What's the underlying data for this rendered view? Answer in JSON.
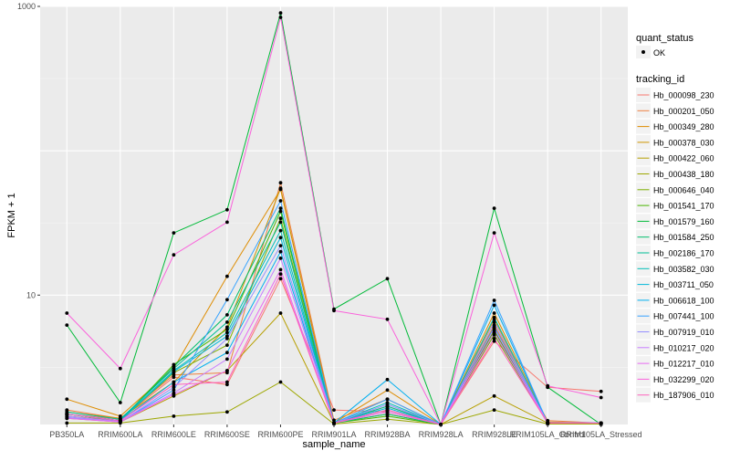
{
  "chart_data": {
    "type": "line",
    "xlabel": "sample_name",
    "ylabel": "FPKM + 1",
    "y_scale": "log10",
    "ylim": [
      1.27,
      1000
    ],
    "y_ticks": [
      10,
      1000
    ],
    "y_tick_labels": [
      "10",
      "1000"
    ],
    "grid": true,
    "legend_placement": "right",
    "categories": [
      "PB350LA",
      "RRIM600LA",
      "RRIM600LE",
      "RRIM600SE",
      "RRIM600PE",
      "RRIM901LA",
      "RRIM928BA",
      "RRIM928LA",
      "RRIM928LE",
      "RRIM105LA_Control",
      "RRIM105LA_Stressed"
    ],
    "quant_status": {
      "title": "quant_status",
      "entries": [
        "OK"
      ]
    },
    "series_legend_title": "tracking_id",
    "series": [
      {
        "name": "Hb_000098_230",
        "color": "#F8766D",
        "values": [
          1.5,
          1.38,
          2.7,
          2.4,
          13,
          1.6,
          1.55,
          1.27,
          4.8,
          2.3,
          2.15
        ]
      },
      {
        "name": "Hb_000201_050",
        "color": "#EE8042",
        "values": [
          1.6,
          1.4,
          2.8,
          2.9,
          60,
          1.36,
          1.9,
          1.27,
          6.2,
          1.35,
          1.3
        ]
      },
      {
        "name": "Hb_000349_280",
        "color": "#DE8C00",
        "values": [
          1.9,
          1.45,
          3.1,
          13.5,
          54,
          1.3,
          2.2,
          1.27,
          7.5,
          1.32,
          1.3
        ]
      },
      {
        "name": "Hb_000378_030",
        "color": "#CF9400",
        "values": [
          1.55,
          1.4,
          2.5,
          6.0,
          55,
          1.3,
          1.7,
          1.27,
          6.8,
          1.3,
          1.3
        ]
      },
      {
        "name": "Hb_000422_060",
        "color": "#B79F00",
        "values": [
          1.4,
          1.32,
          2.0,
          3.0,
          7.5,
          1.3,
          1.5,
          1.27,
          2.0,
          1.3,
          1.3
        ]
      },
      {
        "name": "Hb_000438_180",
        "color": "#9DA700",
        "values": [
          1.3,
          1.3,
          1.45,
          1.55,
          2.5,
          1.28,
          1.38,
          1.27,
          1.6,
          1.28,
          1.28
        ]
      },
      {
        "name": "Hb_000646_040",
        "color": "#7CAE00",
        "values": [
          1.45,
          1.35,
          2.9,
          4.5,
          34,
          1.3,
          1.6,
          1.27,
          5.3,
          1.3,
          1.3
        ]
      },
      {
        "name": "Hb_001541_170",
        "color": "#49B500",
        "values": [
          1.5,
          1.35,
          3.3,
          5.8,
          38,
          1.3,
          1.45,
          1.27,
          5.7,
          1.3,
          1.3
        ]
      },
      {
        "name": "Hb_001579_160",
        "color": "#00BA38",
        "values": [
          6.2,
          1.8,
          27,
          39,
          900,
          8.0,
          13,
          1.27,
          40,
          2.3,
          1.27
        ]
      },
      {
        "name": "Hb_001584_250",
        "color": "#00BE6C",
        "values": [
          1.5,
          1.35,
          3.2,
          7.3,
          40,
          1.3,
          1.5,
          1.27,
          5.5,
          1.3,
          1.3
        ]
      },
      {
        "name": "Hb_002186_170",
        "color": "#00BF96",
        "values": [
          1.55,
          1.38,
          3.1,
          6.5,
          32,
          1.3,
          1.7,
          1.27,
          6.0,
          1.3,
          1.3
        ]
      },
      {
        "name": "Hb_003582_030",
        "color": "#00BDB7",
        "values": [
          1.5,
          1.35,
          3.0,
          5.5,
          28,
          1.3,
          1.8,
          1.27,
          7.0,
          1.3,
          1.3
        ]
      },
      {
        "name": "Hb_003711_050",
        "color": "#00B7D8",
        "values": [
          1.5,
          1.35,
          2.95,
          5.2,
          25,
          1.3,
          1.65,
          1.27,
          6.0,
          1.3,
          1.3
        ]
      },
      {
        "name": "Hb_006618_100",
        "color": "#00AFEF",
        "values": [
          1.5,
          1.35,
          2.5,
          4.0,
          20,
          1.3,
          2.6,
          1.27,
          8.5,
          1.3,
          1.3
        ]
      },
      {
        "name": "Hb_007441_100",
        "color": "#35A2FF",
        "values": [
          1.45,
          1.32,
          2.2,
          9.3,
          45,
          1.3,
          1.9,
          1.27,
          9.2,
          1.3,
          1.3
        ]
      },
      {
        "name": "Hb_007919_010",
        "color": "#9590FF",
        "values": [
          1.42,
          1.32,
          2.3,
          5.0,
          22,
          1.3,
          1.75,
          1.27,
          6.5,
          1.3,
          1.3
        ]
      },
      {
        "name": "Hb_010217_020",
        "color": "#C77CFF",
        "values": [
          1.45,
          1.33,
          2.1,
          3.6,
          18,
          1.3,
          1.6,
          1.27,
          5.9,
          1.3,
          1.3
        ]
      },
      {
        "name": "Hb_012217_010",
        "color": "#E76BF3",
        "values": [
          1.4,
          1.32,
          2.05,
          3.0,
          15,
          1.3,
          1.55,
          1.27,
          5.5,
          1.3,
          1.3
        ]
      },
      {
        "name": "Hb_032299_020",
        "color": "#FA62DB",
        "values": [
          7.5,
          3.1,
          19,
          32,
          840,
          7.8,
          6.8,
          1.27,
          27,
          2.35,
          1.95
        ]
      },
      {
        "name": "Hb_187906_010",
        "color": "#FF62BC",
        "values": [
          1.5,
          1.35,
          2.4,
          2.5,
          14,
          1.3,
          1.6,
          1.27,
          5.0,
          1.3,
          1.3
        ]
      }
    ]
  }
}
